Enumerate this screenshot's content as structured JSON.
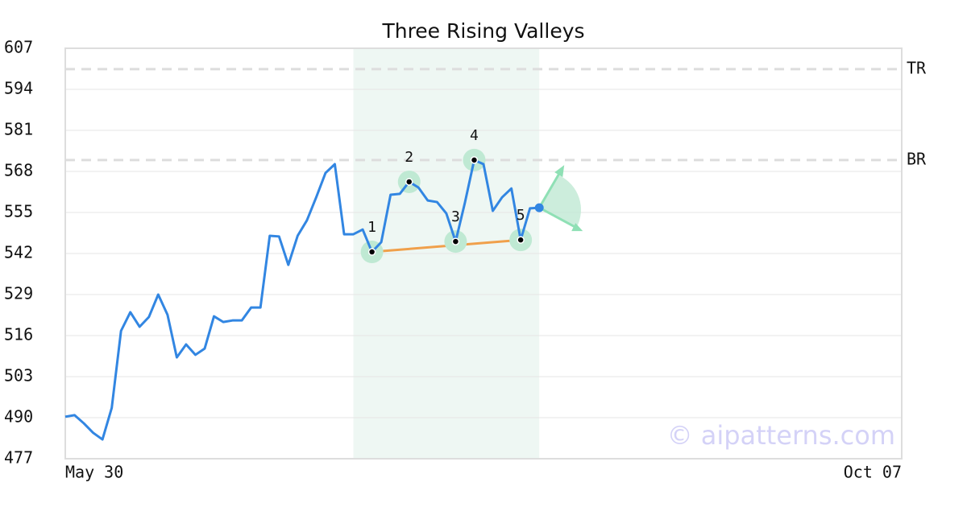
{
  "chart_data": {
    "type": "line",
    "title": "Three Rising Valleys",
    "categories": [
      "May 30",
      null,
      null,
      null,
      null,
      null,
      null,
      null,
      null,
      null,
      null,
      null,
      null,
      null,
      null,
      null,
      null,
      null,
      null,
      null,
      null,
      null,
      null,
      null,
      null,
      null,
      null,
      null,
      null,
      null,
      null,
      null,
      null,
      null,
      null,
      null,
      null,
      null,
      null,
      null,
      null,
      null,
      null,
      null,
      null,
      null,
      null,
      null,
      null,
      null,
      null,
      null,
      null,
      null,
      null,
      null,
      null,
      null,
      null,
      null,
      null,
      null,
      null,
      null,
      null,
      null,
      null,
      null,
      null,
      null,
      null,
      null,
      null,
      null,
      null,
      null,
      null,
      null,
      null,
      null,
      null,
      null,
      null,
      null,
      null,
      null,
      null,
      null,
      null,
      null,
      "Oct 07"
    ],
    "series": [
      {
        "color": "#3286e2",
        "values": [
          490.3,
          490.8,
          488.2,
          485.2,
          483.1,
          493.1,
          517.5,
          523.4,
          518.8,
          521.9,
          529.0,
          522.6,
          509.1,
          513.2,
          509.9,
          511.9,
          522.1,
          520.3,
          520.8,
          520.8,
          524.9,
          524.9,
          547.6,
          547.4,
          538.4,
          547.6,
          552.5,
          559.8,
          567.5,
          570.3,
          548.1,
          548.1,
          549.6,
          542.5,
          545.6,
          560.6,
          560.9,
          564.7,
          562.9,
          558.8,
          558.3,
          554.7,
          545.8,
          558.1,
          571.6,
          570.3,
          555.5,
          559.8,
          562.6,
          546.3,
          556.3,
          556.5,
          null,
          null,
          null,
          null,
          null,
          null,
          null,
          null,
          null,
          null,
          null,
          null,
          null,
          null,
          null,
          null,
          null,
          null,
          null,
          null,
          null,
          null,
          null,
          null,
          null,
          null,
          null,
          null,
          null,
          null,
          null,
          null,
          null,
          null,
          null,
          null,
          null,
          null,
          null
        ]
      }
    ],
    "ylim": [
      477,
      607
    ],
    "yticks": [
      477,
      490,
      503,
      516,
      529,
      542,
      555,
      568,
      581,
      594,
      607
    ],
    "grid": true,
    "levels": [
      {
        "label": "TR",
        "value": 600.4
      },
      {
        "label": "BR",
        "value": 571.6
      }
    ],
    "pattern": {
      "labels": [
        "1",
        "2",
        "3",
        "4",
        "5"
      ],
      "x": [
        33,
        37,
        42,
        44,
        49
      ],
      "highlight": [
        31,
        51
      ],
      "support_color": "#f0a04b",
      "marker_color": "#bfe9d3"
    },
    "watermark": "© aipatterns.com"
  }
}
